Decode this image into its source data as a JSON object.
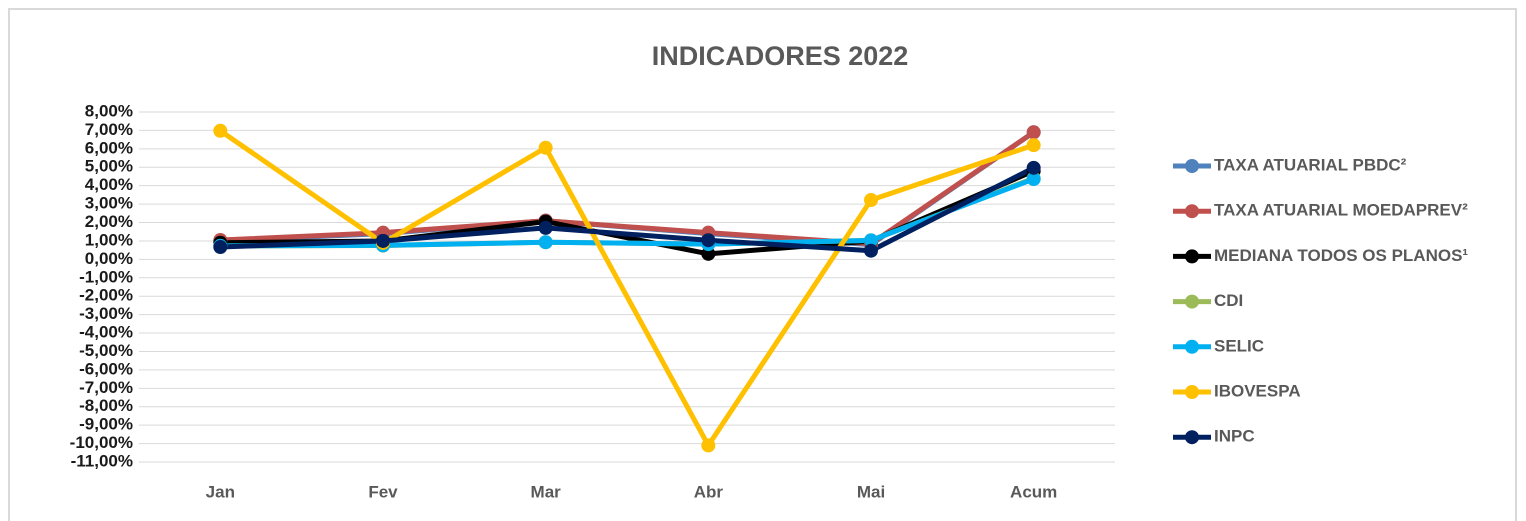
{
  "chart_data": {
    "type": "line",
    "title": "INDICADORES 2022",
    "categories": [
      "Jan",
      "Fev",
      "Mar",
      "Abr",
      "Mai",
      "Acum"
    ],
    "series": [
      {
        "name": "TAXA ATUARIAL PBDC²",
        "color": "#4f81bd",
        "values": [
          1.0,
          1.4,
          2.1,
          1.4,
          0.8,
          6.9
        ]
      },
      {
        "name": "TAXA ATUARIAL MOEDAPREV²",
        "color": "#c0504d",
        "values": [
          1.05,
          1.45,
          2.1,
          1.45,
          0.85,
          6.9
        ]
      },
      {
        "name": "MEDIANA TODOS OS PLANOS¹",
        "color": "#000000",
        "values": [
          0.9,
          1.0,
          2.05,
          0.3,
          1.0,
          4.8
        ]
      },
      {
        "name": "CDI",
        "color": "#9bbb59",
        "values": [
          0.73,
          0.75,
          0.93,
          0.83,
          1.03,
          4.4
        ]
      },
      {
        "name": "SELIC",
        "color": "#00b0f0",
        "values": [
          0.73,
          0.76,
          0.93,
          0.83,
          1.03,
          4.36
        ]
      },
      {
        "name": "IBOVESPA",
        "color": "#ffc000",
        "values": [
          6.98,
          0.89,
          6.06,
          -10.1,
          3.22,
          6.2
        ]
      },
      {
        "name": "INPC",
        "color": "#002060",
        "values": [
          0.67,
          1.0,
          1.71,
          1.04,
          0.47,
          4.97
        ]
      }
    ],
    "ylim": [
      -11,
      8
    ],
    "yticks": [
      {
        "value": -11,
        "label": "-11,00%"
      },
      {
        "value": -10,
        "label": "-10,00%"
      },
      {
        "value": -9,
        "label": "-9,00%"
      },
      {
        "value": -8,
        "label": "-8,00%"
      },
      {
        "value": -7,
        "label": "-7,00%"
      },
      {
        "value": -6,
        "label": "-6,00%"
      },
      {
        "value": -5,
        "label": "-5,00%"
      },
      {
        "value": -4,
        "label": "-4,00%"
      },
      {
        "value": -3,
        "label": "-3,00%"
      },
      {
        "value": -2,
        "label": "-2,00%"
      },
      {
        "value": -1,
        "label": "-1,00%"
      },
      {
        "value": 0,
        "label": "0,00%"
      },
      {
        "value": 1,
        "label": "1,00%"
      },
      {
        "value": 2,
        "label": "2,00%"
      },
      {
        "value": 3,
        "label": "3,00%"
      },
      {
        "value": 4,
        "label": "4,00%"
      },
      {
        "value": 5,
        "label": "5,00%"
      },
      {
        "value": 6,
        "label": "6,00%"
      },
      {
        "value": 7,
        "label": "7,00%"
      },
      {
        "value": 8,
        "label": "8,00%"
      }
    ],
    "grid": true,
    "legend": "right"
  }
}
